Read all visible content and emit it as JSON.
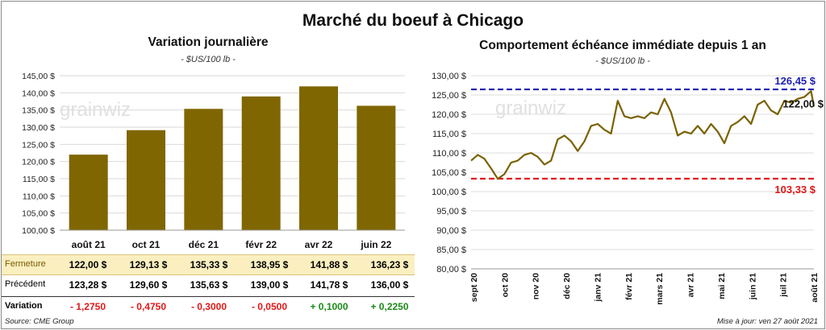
{
  "title": "Marché du boeuf à Chicago",
  "left_panel": {
    "title": "Variation  journalière",
    "subtitle": "- $US/100 lb -",
    "watermark": "grainwiz"
  },
  "right_panel": {
    "title": "Comportement  échéance immédiate depuis 1 an",
    "subtitle": "- $US/100 lb -",
    "watermark": "grainwiz"
  },
  "table": {
    "rows": [
      {
        "label": "Fermeture",
        "values": [
          "122,00  $",
          "129,13  $",
          "135,33  $",
          "138,95  $",
          "141,88  $",
          "136,23  $"
        ]
      },
      {
        "label": "Précédent",
        "values": [
          "123,28  $",
          "129,60  $",
          "135,63  $",
          "139,00  $",
          "141,78  $",
          "136,00  $"
        ]
      },
      {
        "label": "Variation",
        "values": [
          "- 1,2750",
          "- 0,4750",
          "- 0,3000",
          "- 0,0500",
          "+ 0,1000",
          "+ 0,2250"
        ]
      }
    ]
  },
  "footer": {
    "source": "Source: CME Group",
    "updated": "Mise à jour: ven 27 août 2021"
  },
  "colors": {
    "bar": "#806600",
    "line": "#7a6200",
    "high": "#1f1fb4",
    "low": "#e01818",
    "negative": "#e01818",
    "positive": "#1a8a1a",
    "highlight_row": "#fbefc0"
  },
  "chart_data": [
    {
      "type": "bar",
      "categories": [
        "août 21",
        "oct 21",
        "déc 21",
        "févr 22",
        "avr 22",
        "juin 22"
      ],
      "values": [
        122.0,
        129.13,
        135.33,
        138.95,
        141.88,
        136.23
      ],
      "ylim": [
        100,
        145
      ],
      "ticks": [
        "100,00 $",
        "105,00 $",
        "110,00 $",
        "115,00 $",
        "120,00 $",
        "125,00 $",
        "130,00 $",
        "135,00 $",
        "140,00 $",
        "145,00 $"
      ],
      "grid": true
    },
    {
      "type": "line",
      "ylim": [
        80,
        130
      ],
      "ticks": [
        "80,00 $",
        "85,00 $",
        "90,00 $",
        "95,00 $",
        "100,00 $",
        "105,00 $",
        "110,00 $",
        "115,00 $",
        "120,00 $",
        "125,00 $",
        "130,00 $"
      ],
      "months": [
        "sept 20",
        "oct 20",
        "nov 20",
        "déc 20",
        "janv 21",
        "févr 21",
        "mars 21",
        "avr 21",
        "mai 21",
        "juin 21",
        "juil 21",
        "août 21"
      ],
      "x": [
        "2020-09-01",
        "2020-09-08",
        "2020-09-15",
        "2020-09-22",
        "2020-09-29",
        "2020-10-06",
        "2020-10-13",
        "2020-10-20",
        "2020-10-27",
        "2020-11-03",
        "2020-11-10",
        "2020-11-17",
        "2020-11-24",
        "2020-12-01",
        "2020-12-08",
        "2020-12-15",
        "2020-12-22",
        "2020-12-29",
        "2021-01-05",
        "2021-01-12",
        "2021-01-19",
        "2021-01-26",
        "2021-02-02",
        "2021-02-09",
        "2021-02-16",
        "2021-02-23",
        "2021-03-02",
        "2021-03-09",
        "2021-03-16",
        "2021-03-23",
        "2021-03-30",
        "2021-04-06",
        "2021-04-13",
        "2021-04-20",
        "2021-04-27",
        "2021-05-04",
        "2021-05-11",
        "2021-05-18",
        "2021-05-25",
        "2021-06-01",
        "2021-06-08",
        "2021-06-15",
        "2021-06-22",
        "2021-06-29",
        "2021-07-06",
        "2021-07-13",
        "2021-07-20",
        "2021-07-27",
        "2021-08-03",
        "2021-08-10",
        "2021-08-17",
        "2021-08-24",
        "2021-08-27"
      ],
      "y": [
        108.0,
        109.5,
        108.5,
        106.0,
        103.3,
        104.5,
        107.5,
        108.0,
        109.5,
        110.0,
        109.0,
        107.0,
        108.0,
        113.5,
        114.5,
        113.0,
        110.5,
        113.0,
        117.0,
        117.5,
        116.0,
        115.0,
        123.5,
        119.5,
        119.0,
        119.5,
        119.0,
        120.5,
        120.0,
        124.0,
        120.5,
        114.5,
        115.5,
        115.0,
        117.0,
        115.0,
        117.5,
        115.5,
        112.5,
        117.0,
        118.0,
        119.5,
        117.5,
        122.5,
        123.5,
        121.0,
        120.0,
        123.5,
        123.0,
        124.0,
        124.5,
        126.0,
        122.0
      ],
      "hlines": [
        {
          "label": "126,45 $",
          "value": 126.45
        },
        {
          "label": "103,33 $",
          "value": 103.33
        }
      ],
      "last_label": "122,00 $",
      "grid": true
    }
  ]
}
